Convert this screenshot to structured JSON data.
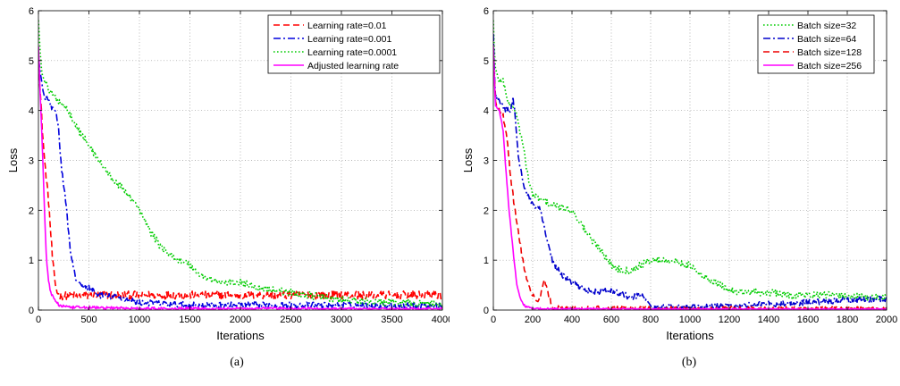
{
  "chart_data": [
    {
      "type": "line",
      "caption": "(a)",
      "xlabel": "Iterations",
      "ylabel": "Loss",
      "xlim": [
        0,
        4000
      ],
      "ylim": [
        0,
        6
      ],
      "xticks": [
        0,
        500,
        1000,
        1500,
        2000,
        2500,
        3000,
        3500,
        4000
      ],
      "yticks": [
        0,
        1,
        2,
        3,
        4,
        5,
        6
      ],
      "grid": true,
      "legend_position": "top-right",
      "series": [
        {
          "name": "Learning rate=0.01",
          "color": "#ff0000",
          "dash": "dashed",
          "x": [
            0,
            20,
            40,
            60,
            80,
            100,
            120,
            140,
            160,
            180,
            200,
            250,
            300,
            400,
            600,
            1000,
            1500,
            2000,
            2500,
            3000,
            3500,
            4000
          ],
          "y": [
            5.0,
            4.3,
            3.6,
            3.0,
            2.6,
            2.2,
            1.6,
            1.0,
            0.6,
            0.4,
            0.3,
            0.28,
            0.3,
            0.28,
            0.3,
            0.3,
            0.3,
            0.3,
            0.3,
            0.3,
            0.3,
            0.3
          ],
          "noise": 0.08
        },
        {
          "name": "Learning rate=0.001",
          "color": "#0000dd",
          "dash": "dashdot",
          "x": [
            0,
            50,
            100,
            150,
            180,
            200,
            220,
            250,
            280,
            300,
            330,
            360,
            400,
            500,
            600,
            800,
            1000,
            1500,
            2000,
            3000,
            4000
          ],
          "y": [
            5.0,
            4.3,
            4.2,
            4.0,
            3.9,
            3.6,
            3.0,
            2.5,
            2.0,
            1.5,
            1.0,
            0.7,
            0.5,
            0.45,
            0.3,
            0.25,
            0.15,
            0.1,
            0.1,
            0.1,
            0.08
          ],
          "noise": 0.06
        },
        {
          "name": "Learning rate=0.0001",
          "color": "#00cc00",
          "dash": "dotted",
          "x": [
            0,
            30,
            100,
            200,
            300,
            400,
            500,
            600,
            700,
            800,
            900,
            1000,
            1100,
            1200,
            1300,
            1400,
            1500,
            1600,
            1800,
            2000,
            2200,
            2500,
            3000,
            3500,
            4000
          ],
          "y": [
            5.8,
            4.8,
            4.4,
            4.2,
            4.0,
            3.6,
            3.3,
            3.0,
            2.7,
            2.5,
            2.3,
            2.0,
            1.6,
            1.3,
            1.1,
            1.0,
            0.9,
            0.7,
            0.55,
            0.55,
            0.45,
            0.35,
            0.2,
            0.15,
            0.12
          ],
          "noise": 0.07
        },
        {
          "name": "Adjusted learning rate",
          "color": "#ff00ff",
          "dash": "solid",
          "x": [
            0,
            20,
            40,
            60,
            80,
            100,
            120,
            150,
            200,
            300,
            500,
            1000,
            2000,
            3000,
            4000
          ],
          "y": [
            5.3,
            4.2,
            3.2,
            2.0,
            1.0,
            0.6,
            0.35,
            0.25,
            0.1,
            0.05,
            0.05,
            0.03,
            0.03,
            0.02,
            0.02
          ],
          "noise": 0.03
        }
      ]
    },
    {
      "type": "line",
      "caption": "(b)",
      "xlabel": "Iterations",
      "ylabel": "Loss",
      "xlim": [
        0,
        2000
      ],
      "ylim": [
        0,
        6
      ],
      "xticks": [
        0,
        200,
        400,
        600,
        800,
        1000,
        1200,
        1400,
        1600,
        1800,
        2000
      ],
      "yticks": [
        0,
        1,
        2,
        3,
        4,
        5,
        6
      ],
      "grid": true,
      "legend_position": "top-right",
      "series": [
        {
          "name": "Batch size=32",
          "color": "#00cc00",
          "dash": "dotted",
          "x": [
            0,
            10,
            30,
            50,
            80,
            100,
            120,
            150,
            180,
            200,
            250,
            300,
            350,
            400,
            450,
            500,
            550,
            600,
            650,
            700,
            800,
            900,
            1000,
            1050,
            1100,
            1200,
            1300,
            1400,
            1500,
            1600,
            1700,
            1800,
            1900,
            2000
          ],
          "y": [
            5.8,
            4.8,
            4.6,
            4.6,
            4.1,
            4.1,
            3.9,
            3.3,
            2.6,
            2.3,
            2.2,
            2.1,
            2.05,
            2.0,
            1.7,
            1.4,
            1.2,
            0.9,
            0.8,
            0.8,
            1.0,
            1.0,
            0.9,
            0.7,
            0.6,
            0.4,
            0.35,
            0.35,
            0.3,
            0.3,
            0.3,
            0.28,
            0.25,
            0.25
          ],
          "noise": 0.07
        },
        {
          "name": "Batch size=64",
          "color": "#0000cc",
          "dash": "dashdot",
          "x": [
            0,
            10,
            30,
            60,
            90,
            100,
            110,
            130,
            160,
            200,
            240,
            260,
            280,
            300,
            320,
            350,
            400,
            450,
            500,
            600,
            700,
            760,
            800,
            900,
            1000,
            1200,
            1400,
            1600,
            1800,
            2000
          ],
          "y": [
            5.5,
            4.3,
            4.2,
            4.0,
            4.0,
            4.3,
            3.9,
            3.0,
            2.4,
            2.1,
            2.0,
            1.6,
            1.3,
            1.0,
            0.85,
            0.7,
            0.55,
            0.45,
            0.35,
            0.4,
            0.25,
            0.3,
            0.05,
            0.05,
            0.05,
            0.08,
            0.12,
            0.15,
            0.2,
            0.22
          ],
          "noise": 0.06
        },
        {
          "name": "Batch size=128",
          "color": "#ee0000",
          "dash": "dashed",
          "x": [
            0,
            10,
            30,
            50,
            70,
            90,
            110,
            130,
            150,
            170,
            200,
            230,
            260,
            300,
            400,
            600,
            1000,
            1500,
            2000
          ],
          "y": [
            5.2,
            4.2,
            4.0,
            3.9,
            3.4,
            2.6,
            2.0,
            1.5,
            1.0,
            0.6,
            0.3,
            0.15,
            0.6,
            0.05,
            0.03,
            0.03,
            0.02,
            0.02,
            0.02
          ],
          "noise": 0.05
        },
        {
          "name": "Batch size=256",
          "color": "#ff00ff",
          "dash": "solid",
          "x": [
            0,
            10,
            30,
            50,
            60,
            70,
            80,
            90,
            100,
            120,
            140,
            160,
            180,
            200,
            250,
            300,
            500,
            1000,
            2000
          ],
          "y": [
            5.3,
            4.1,
            4.0,
            3.6,
            3.0,
            2.5,
            2.0,
            1.6,
            1.2,
            0.5,
            0.2,
            0.08,
            0.05,
            0.04,
            0.03,
            0.02,
            0.02,
            0.01,
            0.01
          ],
          "noise": 0.02
        }
      ]
    }
  ]
}
